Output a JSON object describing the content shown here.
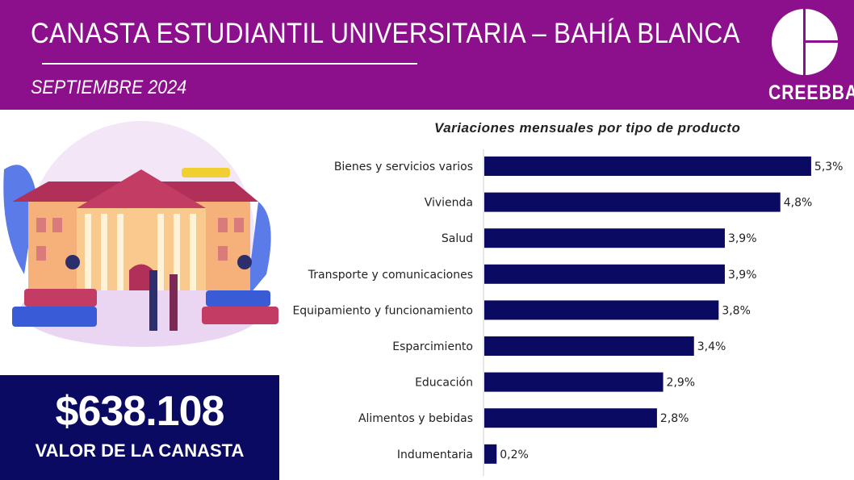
{
  "header": {
    "title": "CANASTA ESTUDIANTIL UNIVERSITARIA – BAHÍA BLANCA",
    "subtitle": "SEPTIEMBRE 2024",
    "logo_text": "CREEBBA"
  },
  "summary": {
    "value": "$638.108",
    "label": "VALOR DE LA CANASTA"
  },
  "colors": {
    "header": "#8c0f8c",
    "bar": "#0a0a63",
    "box": "#0a0a63"
  },
  "chart_data": {
    "type": "bar",
    "orientation": "horizontal",
    "title": "Variaciones mensuales por tipo de producto",
    "categories": [
      "Bienes y servicios varios",
      "Vivienda",
      "Salud",
      "Transporte y comunicaciones",
      "Equipamiento y funcionamiento",
      "Esparcimiento",
      "Educación",
      "Alimentos y bebidas",
      "Indumentaria"
    ],
    "values": [
      5.3,
      4.8,
      3.9,
      3.9,
      3.8,
      3.4,
      2.9,
      2.8,
      0.2
    ],
    "labels": [
      "5,3%",
      "4,8%",
      "3,9%",
      "3,9%",
      "3,8%",
      "3,4%",
      "2,9%",
      "2,8%",
      "0,2%"
    ],
    "xlim": [
      0,
      5.5
    ],
    "unit": "%"
  }
}
